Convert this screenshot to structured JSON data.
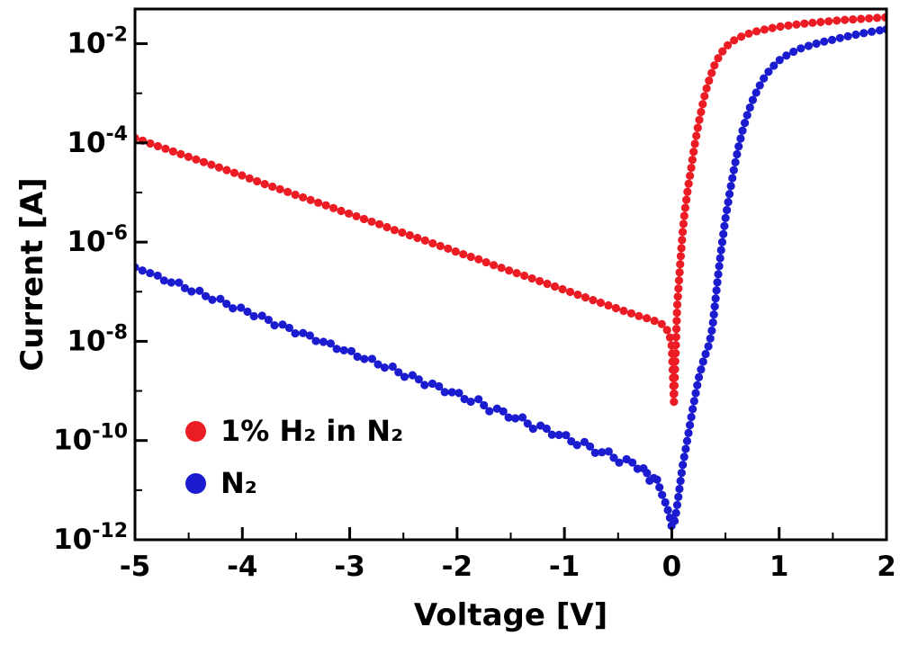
{
  "chart_data": {
    "type": "scatter",
    "title": "",
    "xlabel": "Voltage [V]",
    "ylabel": "Current [A]",
    "xlim": [
      -5,
      2
    ],
    "x_major_ticks": [
      -5,
      -4,
      -3,
      -2,
      -1,
      0,
      1,
      2
    ],
    "x_minor_step": 0.5,
    "y_scale": "log",
    "ylim": [
      1e-12,
      0.05
    ],
    "y_major_exponents": [
      -12,
      -10,
      -8,
      -6,
      -4,
      -2
    ],
    "y_minor_exponents": [
      -11,
      -9,
      -7,
      -5,
      -3
    ],
    "grid": false,
    "legend_position": "lower-left",
    "series": [
      {
        "label": "1% H₂ in N₂",
        "color": "#ec1c24",
        "marker": "circle",
        "points": [
          [
            -5.0,
            0.000126
          ],
          [
            -4.9,
            0.000105
          ],
          [
            -4.8,
            8.8e-05
          ],
          [
            -4.7,
            7.4e-05
          ],
          [
            -4.6,
            6.2e-05
          ],
          [
            -4.5,
            5.2e-05
          ],
          [
            -4.4,
            4.4e-05
          ],
          [
            -4.3,
            3.7e-05
          ],
          [
            -4.2,
            3.1e-05
          ],
          [
            -4.1,
            2.6e-05
          ],
          [
            -4.0,
            2.2e-05
          ],
          [
            -3.9,
            1.8e-05
          ],
          [
            -3.8,
            1.5e-05
          ],
          [
            -3.7,
            1.27e-05
          ],
          [
            -3.6,
            1.07e-05
          ],
          [
            -3.5,
            8.9e-06
          ],
          [
            -3.4,
            7.5e-06
          ],
          [
            -3.3,
            6.3e-06
          ],
          [
            -3.2,
            5.3e-06
          ],
          [
            -3.1,
            4.4e-06
          ],
          [
            -3.0,
            3.7e-06
          ],
          [
            -2.9,
            3.1e-06
          ],
          [
            -2.8,
            2.6e-06
          ],
          [
            -2.7,
            2.2e-06
          ],
          [
            -2.6,
            1.8e-06
          ],
          [
            -2.5,
            1.53e-06
          ],
          [
            -2.4,
            1.28e-06
          ],
          [
            -2.3,
            1.08e-06
          ],
          [
            -2.2,
            9e-07
          ],
          [
            -2.1,
            7.6e-07
          ],
          [
            -2.0,
            6.3e-07
          ],
          [
            -1.9,
            5.3e-07
          ],
          [
            -1.8,
            4.5e-07
          ],
          [
            -1.7,
            3.7e-07
          ],
          [
            -1.6,
            3.1e-07
          ],
          [
            -1.5,
            2.6e-07
          ],
          [
            -1.4,
            2.2e-07
          ],
          [
            -1.3,
            1.85e-07
          ],
          [
            -1.2,
            1.55e-07
          ],
          [
            -1.1,
            1.3e-07
          ],
          [
            -1.0,
            1.09e-07
          ],
          [
            -0.9,
            9.1e-08
          ],
          [
            -0.8,
            7.6e-08
          ],
          [
            -0.7,
            6.4e-08
          ],
          [
            -0.6,
            5.4e-08
          ],
          [
            -0.5,
            4.5e-08
          ],
          [
            -0.4,
            3.8e-08
          ],
          [
            -0.3,
            3.2e-08
          ],
          [
            -0.2,
            2.8e-08
          ],
          [
            -0.1,
            2.3e-08
          ],
          [
            -0.05,
            1.8e-08
          ],
          [
            -0.02,
            1.3e-08
          ],
          [
            0.0,
            8e-09
          ],
          [
            0.02,
            6e-10
          ],
          [
            0.05,
            5e-08
          ],
          [
            0.08,
            4e-07
          ],
          [
            0.1,
            1.5e-06
          ],
          [
            0.12,
            4e-06
          ],
          [
            0.15,
            1.2e-05
          ],
          [
            0.18,
            3e-05
          ],
          [
            0.2,
            6e-05
          ],
          [
            0.22,
            0.00011
          ],
          [
            0.25,
            0.00025
          ],
          [
            0.28,
            0.0005
          ],
          [
            0.3,
            0.0008
          ],
          [
            0.33,
            0.0014
          ],
          [
            0.36,
            0.0022
          ],
          [
            0.4,
            0.0038
          ],
          [
            0.45,
            0.006
          ],
          [
            0.5,
            0.0085
          ],
          [
            0.55,
            0.0105
          ],
          [
            0.6,
            0.0125
          ],
          [
            0.7,
            0.0155
          ],
          [
            0.8,
            0.018
          ],
          [
            0.9,
            0.02
          ],
          [
            1.0,
            0.022
          ],
          [
            1.2,
            0.025
          ],
          [
            1.4,
            0.0275
          ],
          [
            1.6,
            0.03
          ],
          [
            1.8,
            0.032
          ],
          [
            2.0,
            0.034
          ]
        ]
      },
      {
        "label": "N₂",
        "color": "#1b1bd0",
        "marker": "circle",
        "points": [
          [
            -5.0,
            3.1e-07
          ],
          [
            -4.9,
            2.5e-07
          ],
          [
            -4.8,
            2.2e-07
          ],
          [
            -4.7,
            1.5e-07
          ],
          [
            -4.6,
            1.6e-07
          ],
          [
            -4.5,
            1e-07
          ],
          [
            -4.4,
            1.05e-07
          ],
          [
            -4.3,
            6.8e-08
          ],
          [
            -4.2,
            7.2e-08
          ],
          [
            -4.1,
            4.6e-08
          ],
          [
            -4.0,
            4.8e-08
          ],
          [
            -3.9,
            3.2e-08
          ],
          [
            -3.8,
            3.3e-08
          ],
          [
            -3.7,
            2.1e-08
          ],
          [
            -3.6,
            2.2e-08
          ],
          [
            -3.5,
            1.4e-08
          ],
          [
            -3.4,
            1.5e-08
          ],
          [
            -3.3,
            9.5e-09
          ],
          [
            -3.2,
            1e-08
          ],
          [
            -3.1,
            6.4e-09
          ],
          [
            -3.0,
            6.8e-09
          ],
          [
            -2.9,
            4.3e-09
          ],
          [
            -2.8,
            4.6e-09
          ],
          [
            -2.7,
            2.9e-09
          ],
          [
            -2.6,
            3.1e-09
          ],
          [
            -2.5,
            1.9e-09
          ],
          [
            -2.4,
            2.1e-09
          ],
          [
            -2.3,
            1.3e-09
          ],
          [
            -2.2,
            1.45e-09
          ],
          [
            -2.1,
            8.8e-10
          ],
          [
            -2.0,
            1e-09
          ],
          [
            -1.9,
            5.8e-10
          ],
          [
            -1.8,
            6.8e-10
          ],
          [
            -1.7,
            3.9e-10
          ],
          [
            -1.6,
            4.6e-10
          ],
          [
            -1.5,
            2.6e-10
          ],
          [
            -1.4,
            3.1e-10
          ],
          [
            -1.3,
            1.7e-10
          ],
          [
            -1.2,
            2.1e-10
          ],
          [
            -1.1,
            1.2e-10
          ],
          [
            -1.0,
            1.4e-10
          ],
          [
            -0.9,
            7.8e-11
          ],
          [
            -0.8,
            9.6e-11
          ],
          [
            -0.7,
            5.2e-11
          ],
          [
            -0.6,
            6.5e-11
          ],
          [
            -0.5,
            3.5e-11
          ],
          [
            -0.4,
            4.4e-11
          ],
          [
            -0.3,
            2.4e-11
          ],
          [
            -0.25,
            2.9e-11
          ],
          [
            -0.2,
            1.4e-11
          ],
          [
            -0.15,
            2e-11
          ],
          [
            -0.1,
            9e-12
          ],
          [
            -0.05,
            5e-12
          ],
          [
            -0.02,
            3e-12
          ],
          [
            0.0,
            1.8e-12
          ],
          [
            0.03,
            2.5e-12
          ],
          [
            0.06,
            7e-12
          ],
          [
            0.1,
            3e-11
          ],
          [
            0.15,
            1.2e-10
          ],
          [
            0.2,
            5e-10
          ],
          [
            0.25,
            1.8e-09
          ],
          [
            0.3,
            4.5e-09
          ],
          [
            0.35,
            9e-09
          ],
          [
            0.38,
            2e-08
          ],
          [
            0.4,
            5e-08
          ],
          [
            0.43,
            2e-07
          ],
          [
            0.46,
            7e-07
          ],
          [
            0.5,
            3e-06
          ],
          [
            0.54,
            1e-05
          ],
          [
            0.58,
            3e-05
          ],
          [
            0.62,
            8e-05
          ],
          [
            0.66,
            0.00018
          ],
          [
            0.7,
            0.00035
          ],
          [
            0.75,
            0.0007
          ],
          [
            0.8,
            0.0012
          ],
          [
            0.85,
            0.0019
          ],
          [
            0.9,
            0.0027
          ],
          [
            0.95,
            0.0036
          ],
          [
            1.0,
            0.0046
          ],
          [
            1.1,
            0.0064
          ],
          [
            1.2,
            0.008
          ],
          [
            1.3,
            0.0094
          ],
          [
            1.4,
            0.0108
          ],
          [
            1.5,
            0.012
          ],
          [
            1.6,
            0.0135
          ],
          [
            1.7,
            0.015
          ],
          [
            1.8,
            0.0165
          ],
          [
            1.9,
            0.018
          ],
          [
            2.0,
            0.0195
          ]
        ]
      }
    ]
  }
}
